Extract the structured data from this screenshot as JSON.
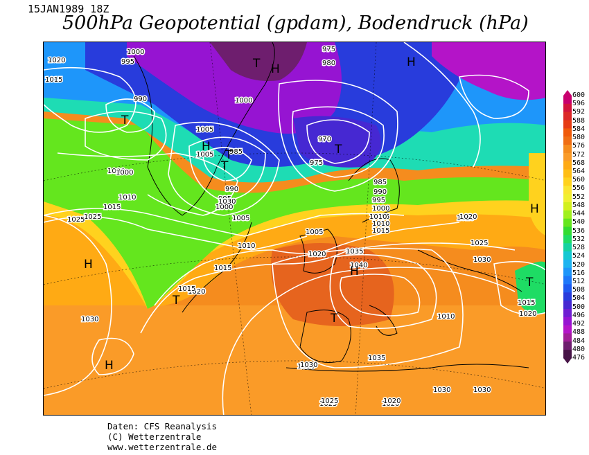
{
  "header": {
    "date": "15JAN1989 18Z",
    "title": "500hPa Geopotential (gpdam), Bodendruck (hPa)"
  },
  "footer": {
    "line1": "Daten: CFS Reanalysis",
    "line2": "(C) Wetterzentrale",
    "line3": "www.wetterzentrale.de"
  },
  "legend": {
    "unit": "gpdam",
    "levels": [
      "600",
      "596",
      "592",
      "588",
      "584",
      "580",
      "576",
      "572",
      "568",
      "564",
      "560",
      "556",
      "552",
      "548",
      "544",
      "540",
      "536",
      "532",
      "528",
      "524",
      "520",
      "516",
      "512",
      "508",
      "504",
      "500",
      "496",
      "492",
      "488",
      "484",
      "480",
      "476"
    ],
    "colors": [
      "#c8006e",
      "#d2143c",
      "#dc2828",
      "#e63c14",
      "#f05a0a",
      "#f06e14",
      "#f58c1e",
      "#fa9b28",
      "#ffaa14",
      "#ffbe14",
      "#ffd21e",
      "#fae632",
      "#f0f032",
      "#d2f01e",
      "#a0f01e",
      "#64e61e",
      "#32dc32",
      "#1edc64",
      "#14d2a0",
      "#14c8d2",
      "#1eb4f0",
      "#1e96fa",
      "#1e78fa",
      "#1e5af0",
      "#283cdc",
      "#4628d2",
      "#6e1ed2",
      "#9614d2",
      "#b414c8",
      "#a01e96",
      "#6e1e6e",
      "#461446"
    ]
  },
  "map": {
    "pressure_labels": [
      "1020",
      "1015",
      "1000",
      "995",
      "990",
      "975",
      "980",
      "975",
      "970",
      "985",
      "1000",
      "1005",
      "1000",
      "990",
      "995",
      "1000",
      "1005",
      "1010",
      "1015",
      "1020",
      "1025",
      "1030",
      "1035",
      "1040",
      "1035",
      "1030",
      "1025",
      "1020",
      "1010",
      "1015",
      "1020",
      "1005",
      "1005",
      "1010",
      "1015",
      "1000",
      "1025",
      "1030",
      "1020",
      "1025",
      "1030",
      "1015",
      "1020",
      "1030",
      "1025",
      "1020",
      "1030",
      "1030",
      "985",
      "990",
      "995",
      "1000",
      "1005",
      "1010",
      "1015",
      "1010",
      "1020"
    ],
    "centers": [
      {
        "symbol": "T",
        "name": "low-iceland-west"
      },
      {
        "symbol": "T",
        "name": "low-greenland-south"
      },
      {
        "symbol": "T",
        "name": "low-greenland-north"
      },
      {
        "symbol": "H",
        "name": "high-greenland-north"
      },
      {
        "symbol": "H",
        "name": "high-greenland-center"
      },
      {
        "symbol": "T",
        "name": "low-norway-sea"
      },
      {
        "symbol": "H",
        "name": "high-siberia-north"
      },
      {
        "symbol": "T",
        "name": "low-arctic-west"
      },
      {
        "symbol": "H",
        "name": "high-atlantic-west"
      },
      {
        "symbol": "T",
        "name": "low-atlantic-mid"
      },
      {
        "symbol": "H",
        "name": "high-atlantic-south"
      },
      {
        "symbol": "H",
        "name": "high-central-europe"
      },
      {
        "symbol": "T",
        "name": "low-iberia"
      },
      {
        "symbol": "H",
        "name": "high-russia-east"
      },
      {
        "symbol": "T",
        "name": "low-caspian"
      }
    ]
  }
}
